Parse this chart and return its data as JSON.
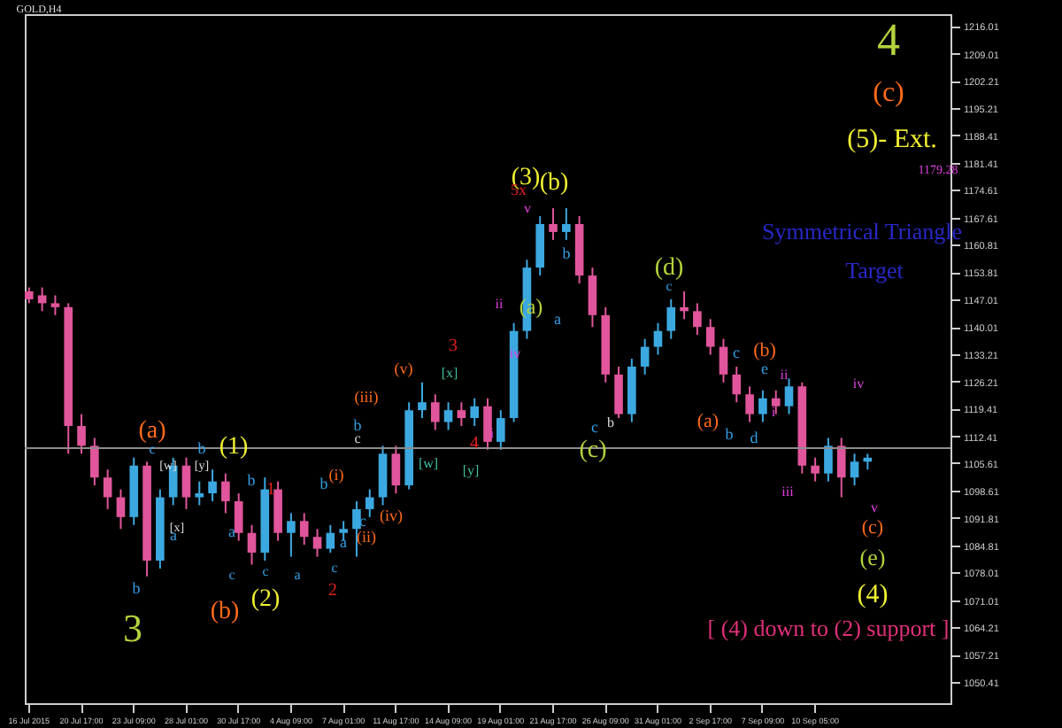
{
  "chart_data": {
    "type": "candlestick",
    "categories": [
      "16 Jul 2015",
      null,
      null,
      null,
      "20 Jul 17:00",
      null,
      null,
      null,
      "23 Jul 09:00",
      null,
      null,
      null,
      "28 Jul 01:00",
      null,
      null,
      null,
      "30 Jul 17:00",
      null,
      null,
      null,
      "4 Aug 09:00",
      null,
      null,
      null,
      "7 Aug 01:00",
      null,
      null,
      null,
      "11 Aug 17:00",
      null,
      null,
      null,
      "14 Aug 09:00",
      null,
      null,
      null,
      "19 Aug 01:00",
      null,
      null,
      null,
      "21 Aug 17:00",
      null,
      null,
      null,
      "26 Aug 09:00",
      null,
      null,
      null,
      "31 Aug 01:00",
      null,
      null,
      null,
      "2 Sep 17:00",
      null,
      null,
      null,
      "7 Sep 09:00",
      null,
      null,
      null,
      "10 Sep 05:00",
      null,
      null,
      null,
      null,
      null,
      null,
      null,
      null,
      null,
      null
    ],
    "ohlc": [
      [
        1149,
        1150,
        1146,
        1147
      ],
      [
        1148,
        1150,
        1144,
        1146
      ],
      [
        1146,
        1148,
        1143,
        1145
      ],
      [
        1145,
        1146,
        1108,
        1115
      ],
      [
        1115,
        1118,
        1108,
        1110
      ],
      [
        1110,
        1112,
        1100,
        1102
      ],
      [
        1102,
        1104,
        1094,
        1097
      ],
      [
        1097,
        1099,
        1089,
        1092
      ],
      [
        1092,
        1107,
        1090,
        1105
      ],
      [
        1105,
        1106,
        1077,
        1081
      ],
      [
        1081,
        1099,
        1079,
        1097
      ],
      [
        1097,
        1107,
        1095,
        1105
      ],
      [
        1105,
        1107,
        1094,
        1097
      ],
      [
        1097,
        1101,
        1095,
        1098
      ],
      [
        1098,
        1104,
        1096,
        1101
      ],
      [
        1101,
        1103,
        1093,
        1096
      ],
      [
        1096,
        1098,
        1086,
        1088
      ],
      [
        1088,
        1090,
        1080,
        1083
      ],
      [
        1083,
        1102,
        1081,
        1099
      ],
      [
        1099,
        1101,
        1086,
        1088
      ],
      [
        1088,
        1093,
        1082,
        1091
      ],
      [
        1091,
        1093,
        1085,
        1087
      ],
      [
        1087,
        1089,
        1082,
        1084
      ],
      [
        1084,
        1090,
        1083,
        1088
      ],
      [
        1088,
        1091,
        1086,
        1089
      ],
      [
        1089,
        1096,
        1082,
        1094
      ],
      [
        1094,
        1099,
        1092,
        1097
      ],
      [
        1097,
        1110,
        1095,
        1108
      ],
      [
        1108,
        1110,
        1098,
        1100
      ],
      [
        1100,
        1121,
        1099,
        1119
      ],
      [
        1119,
        1126,
        1117,
        1121
      ],
      [
        1121,
        1123,
        1114,
        1116
      ],
      [
        1116,
        1121,
        1114,
        1119
      ],
      [
        1119,
        1121,
        1115,
        1117
      ],
      [
        1117,
        1122,
        1115,
        1120
      ],
      [
        1120,
        1122,
        1109,
        1111
      ],
      [
        1111,
        1119,
        1109,
        1117
      ],
      [
        1117,
        1141,
        1116,
        1139
      ],
      [
        1139,
        1157,
        1137,
        1155
      ],
      [
        1155,
        1168,
        1153,
        1166
      ],
      [
        1166,
        1170,
        1162,
        1164
      ],
      [
        1164,
        1170,
        1162,
        1166
      ],
      [
        1166,
        1168,
        1151,
        1153
      ],
      [
        1153,
        1155,
        1140,
        1143
      ],
      [
        1143,
        1145,
        1126,
        1128
      ],
      [
        1128,
        1130,
        1117,
        1118
      ],
      [
        1118,
        1132,
        1116,
        1130
      ],
      [
        1130,
        1137,
        1128,
        1135
      ],
      [
        1135,
        1141,
        1133,
        1139
      ],
      [
        1139,
        1147,
        1137,
        1145
      ],
      [
        1145,
        1149,
        1142,
        1144
      ],
      [
        1144,
        1146,
        1138,
        1140
      ],
      [
        1140,
        1142,
        1133,
        1135
      ],
      [
        1135,
        1137,
        1126,
        1128
      ],
      [
        1128,
        1130,
        1121,
        1123
      ],
      [
        1123,
        1125,
        1116,
        1118
      ],
      [
        1118,
        1124,
        1116,
        1122
      ],
      [
        1122,
        1124,
        1118,
        1120
      ],
      [
        1120,
        1127,
        1118,
        1125
      ],
      [
        1125,
        1126,
        1103,
        1105
      ],
      [
        1105,
        1107,
        1101,
        1103
      ],
      [
        1103,
        1112,
        1101,
        1110
      ],
      [
        1110,
        1112,
        1097,
        1102
      ],
      [
        1102,
        1108,
        1100,
        1106
      ],
      [
        1106,
        1108,
        1104,
        1107
      ],
      null,
      null,
      null,
      null,
      null,
      null
    ],
    "colors": [
      "#e0559b",
      "#e0559b",
      "#e0559b",
      "#e0559b",
      "#e0559b",
      "#e0559b",
      "#e0559b",
      "#e0559b",
      "#3ca8e0",
      "#e0559b",
      "#3ca8e0",
      "#3ca8e0",
      "#e0559b",
      "#3ca8e0",
      "#3ca8e0",
      "#e0559b",
      "#e0559b",
      "#e0559b",
      "#3ca8e0",
      "#e0559b",
      "#3ca8e0",
      "#e0559b",
      "#e0559b",
      "#3ca8e0",
      "#3ca8e0",
      "#3ca8e0",
      "#3ca8e0",
      "#3ca8e0",
      "#e0559b",
      "#3ca8e0",
      "#3ca8e0",
      "#e0559b",
      "#3ca8e0",
      "#e0559b",
      "#3ca8e0",
      "#e0559b",
      "#3ca8e0",
      "#3ca8e0",
      "#3ca8e0",
      "#3ca8e0",
      "#e0559b",
      "#3ca8e0",
      "#e0559b",
      "#e0559b",
      "#e0559b",
      "#e0559b",
      "#3ca8e0",
      "#3ca8e0",
      "#3ca8e0",
      "#3ca8e0",
      "#e0559b",
      "#e0559b",
      "#e0559b",
      "#e0559b",
      "#e0559b",
      "#e0559b",
      "#3ca8e0",
      "#e0559b",
      "#3ca8e0",
      "#e0559b",
      "#e0559b",
      "#3ca8e0",
      "#e0559b",
      "#3ca8e0",
      "#3ca8e0",
      null,
      null,
      null,
      null,
      null,
      null
    ],
    "ylim": [
      1045,
      1219
    ],
    "yticks": [
      1050.41,
      1057.21,
      1064.21,
      1071.01,
      1078.01,
      1084.81,
      1091.81,
      1098.61,
      1105.61,
      1112.41,
      1119.41,
      1126.21,
      1133.21,
      1140.01,
      1147.01,
      1153.81,
      1160.81,
      1167.61,
      1174.61,
      1181.41,
      1188.41,
      1195.21,
      1202.21,
      1209.01,
      1216.01
    ],
    "ref_lines": [
      {
        "axis": "y",
        "value": 1109.4,
        "color": "#8c8c8c"
      }
    ],
    "annotations": [
      "GOLD,H4",
      "4",
      "(c)",
      "(5)- Ext.",
      "1179.28",
      "Symmetrical Triangle",
      "Target",
      "(3)",
      "5x",
      "(b)",
      "v",
      "(a)",
      "ii",
      "iv",
      "b",
      "a",
      "(d)",
      "c",
      "(c)",
      "c",
      "b",
      "(a)",
      "b",
      "d",
      "(b)",
      "c",
      "e",
      "ii",
      "i",
      "iii",
      "iv",
      "v",
      "(c)",
      "(e)",
      "(4)",
      "[ (4) down to (2) support ]",
      "3",
      "4",
      "[x]",
      "[w]",
      "[y]",
      "(v)",
      "(iii)",
      "(iv)",
      "(ii)",
      "(i)",
      "2",
      "1",
      "(1)",
      "(2)",
      "(b)",
      "3",
      "(a)",
      "c",
      "b",
      "[w]",
      "[y]",
      "[x]",
      "a",
      "b",
      "c",
      "c",
      "b",
      "a",
      "a",
      "c",
      "a",
      "b",
      "b",
      "c",
      "c",
      "i"
    ]
  }
}
